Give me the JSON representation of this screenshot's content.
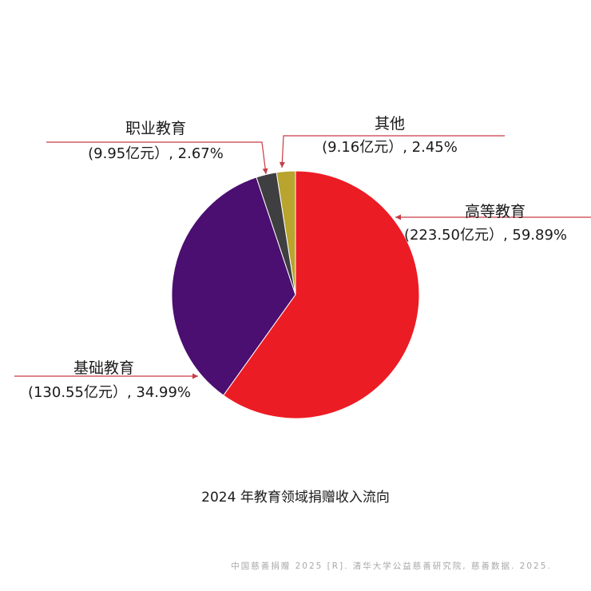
{
  "chart_data": {
    "type": "pie",
    "title": "2024 年教育领域捐赠收入流向",
    "unit": "亿元",
    "slices": [
      {
        "name": "高等教育",
        "value": 223.5,
        "value_text": "(223.50亿元）, 59.89%",
        "percent": 59.89,
        "color": "#ec1c24"
      },
      {
        "name": "基础教育",
        "value": 130.55,
        "value_text": "(130.55亿元）, 34.99%",
        "percent": 34.99,
        "color": "#4a0f70"
      },
      {
        "name": "职业教育",
        "value": 9.95,
        "value_text": "(9.95亿元）, 2.67%",
        "percent": 2.67,
        "color": "#3f3f41"
      },
      {
        "name": "其他",
        "value": 9.16,
        "value_text": "(9.16亿元）, 2.45%",
        "percent": 2.45,
        "color": "#b8a42e"
      }
    ],
    "leader_color": "#c83c46"
  },
  "source": "中国慈善捐赠 2025 [R]. 清华大学公益慈善研究院, 慈善数据. 2025."
}
